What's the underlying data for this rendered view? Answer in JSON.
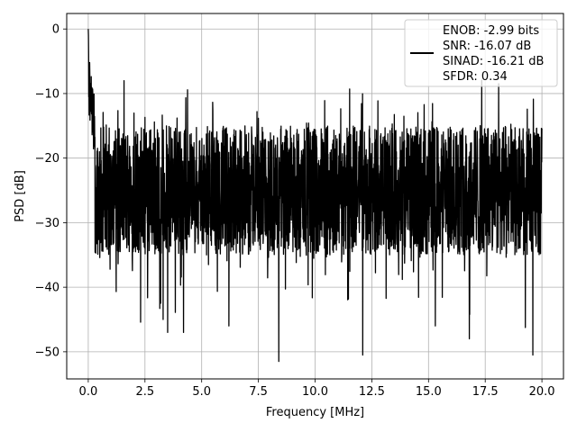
{
  "chart_data": {
    "type": "line",
    "title": "",
    "xlabel": "Frequency [MHz]",
    "ylabel": "PSD [dB]",
    "xlim": [
      -0.95,
      20.95
    ],
    "ylim": [
      -54.2,
      2.4
    ],
    "xticks": [
      0.0,
      2.5,
      5.0,
      7.5,
      10.0,
      12.5,
      15.0,
      17.5,
      20.0
    ],
    "xtick_labels": [
      "0.0",
      "2.5",
      "5.0",
      "7.5",
      "10.0",
      "12.5",
      "15.0",
      "17.5",
      "20.0"
    ],
    "yticks": [
      0,
      -10,
      -20,
      -30,
      -40,
      -50
    ],
    "ytick_labels": [
      "0",
      "−10",
      "−20",
      "−30",
      "−40",
      "−50"
    ],
    "grid": true,
    "legend": {
      "placement": "top-right",
      "entries": [
        "ENOB: -2.99 bits",
        "SNR: -16.07 dB",
        "SINAD: -16.21 dB",
        "SFDR: 0.34"
      ]
    },
    "series": [
      {
        "color": "#000000",
        "description_values": "noisy PSD: peak 0 dB at 0 MHz, dropping to about -12 dB near 0.3 MHz, then fluctuating mostly between -13 and -38 dB up to 20 MHz, with dips to about -51.5 dB",
        "anchor_points": {
          "x": [
            0.0,
            0.02,
            0.05,
            0.1,
            0.2,
            0.3,
            0.5,
            0.8,
            1.2,
            2.0,
            3.3,
            3.5,
            4.2,
            6.2,
            8.4,
            12.1,
            15.3,
            16.8,
            19.6,
            20.0
          ],
          "y": [
            0.0,
            -6.0,
            -9.0,
            -10.5,
            -12.0,
            -14.5,
            -18.0,
            -20.0,
            -22.0,
            -24.0,
            -45.0,
            -47.0,
            -47.0,
            -46.0,
            -51.5,
            -50.5,
            -46.0,
            -48.0,
            -50.5,
            -22.0
          ]
        }
      }
    ]
  }
}
